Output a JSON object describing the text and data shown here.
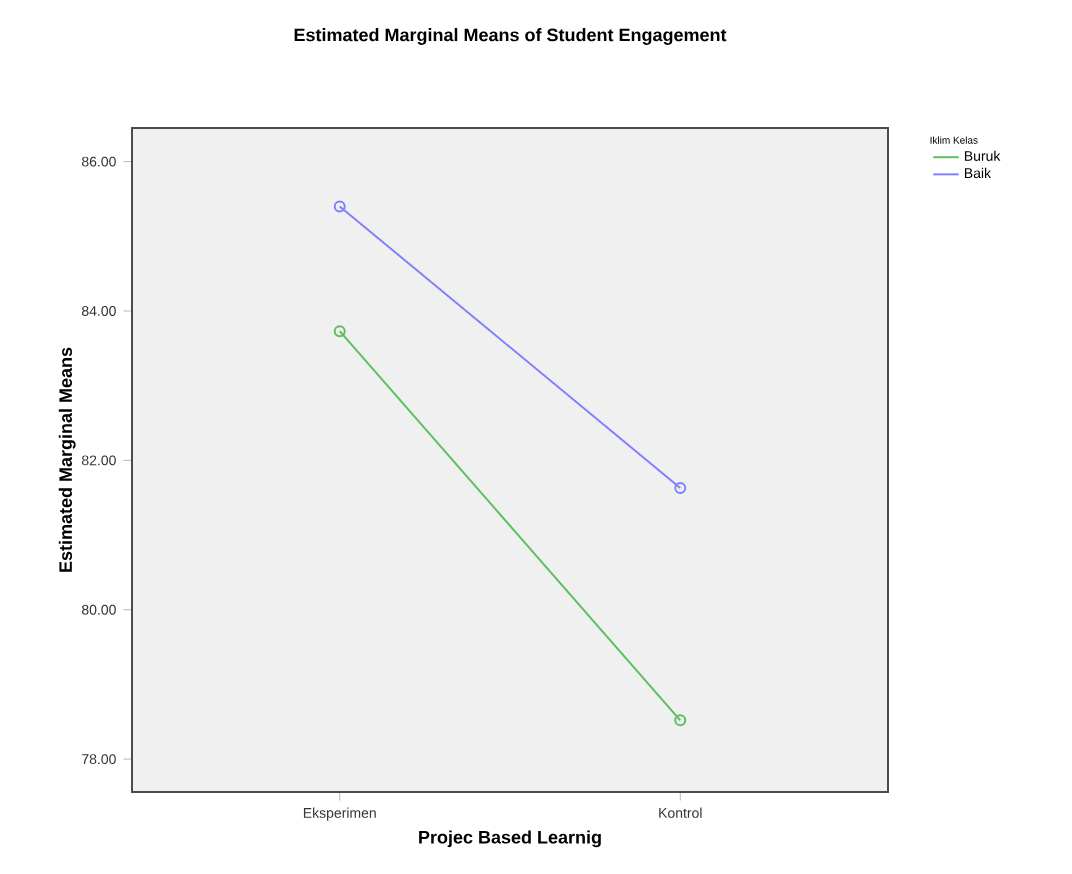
{
  "chart_data": {
    "type": "line",
    "title": "Estimated Marginal Means of Student Engagement",
    "xlabel": "Projec Based Learnig",
    "ylabel": "Estimated Marginal Means",
    "legend_title": "Iklim Kelas",
    "categories": [
      "Eksperimen",
      "Kontrol"
    ],
    "series": [
      {
        "name": "Buruk",
        "color": "#5dbf5d",
        "values": [
          83.73,
          78.52
        ]
      },
      {
        "name": "Baik",
        "color": "#8080ff",
        "values": [
          85.4,
          81.63
        ]
      }
    ],
    "ylim": [
      77.56,
      86.45
    ],
    "yticks": [
      {
        "value": 78,
        "label": "78.00"
      },
      {
        "value": 80,
        "label": "80.00"
      },
      {
        "value": 82,
        "label": "82.00"
      },
      {
        "value": 84,
        "label": "84.00"
      },
      {
        "value": 86,
        "label": "86.00"
      }
    ],
    "grid": false,
    "legend": "top right",
    "marker": "circle",
    "line_style": "solid"
  }
}
